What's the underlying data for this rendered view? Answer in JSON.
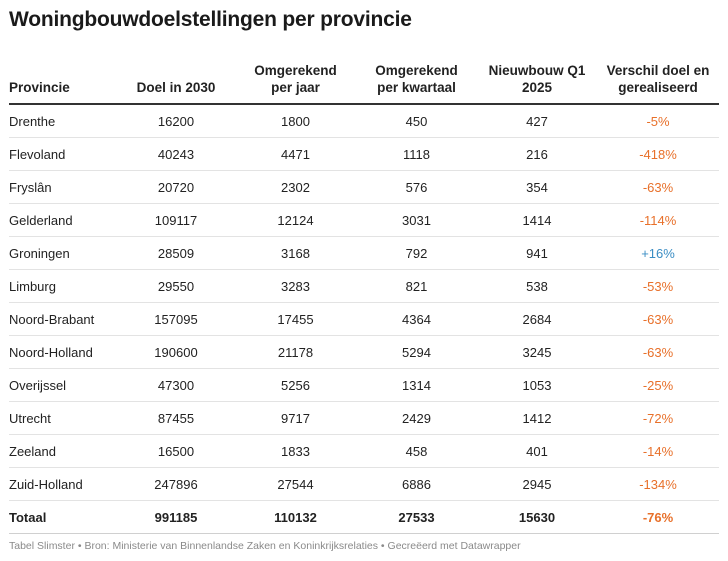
{
  "title": "Woningbouwdoelstellingen per provincie",
  "columns": [
    {
      "line1": "Provincie",
      "line2": ""
    },
    {
      "line1": "Doel in 2030",
      "line2": ""
    },
    {
      "line1": "Omgerekend",
      "line2": "per jaar"
    },
    {
      "line1": "Omgerekend",
      "line2": "per kwartaal"
    },
    {
      "line1": "Nieuwbouw Q1",
      "line2": "2025"
    },
    {
      "line1": "Verschil doel en",
      "line2": "gerealiseerd"
    }
  ],
  "rows": [
    [
      "Drenthe",
      "16200",
      "1800",
      "450",
      "427",
      "-5%"
    ],
    [
      "Flevoland",
      "40243",
      "4471",
      "1118",
      "216",
      "-418%"
    ],
    [
      "Fryslân",
      "20720",
      "2302",
      "576",
      "354",
      "-63%"
    ],
    [
      "Gelderland",
      "109117",
      "12124",
      "3031",
      "1414",
      "-114%"
    ],
    [
      "Groningen",
      "28509",
      "3168",
      "792",
      "941",
      "+16%"
    ],
    [
      "Limburg",
      "29550",
      "3283",
      "821",
      "538",
      "-53%"
    ],
    [
      "Noord-Brabant",
      "157095",
      "17455",
      "4364",
      "2684",
      "-63%"
    ],
    [
      "Noord-Holland",
      "190600",
      "21178",
      "5294",
      "3245",
      "-63%"
    ],
    [
      "Overijssel",
      "47300",
      "5256",
      "1314",
      "1053",
      "-25%"
    ],
    [
      "Utrecht",
      "87455",
      "9717",
      "2429",
      "1412",
      "-72%"
    ],
    [
      "Zeeland",
      "16500",
      "1833",
      "458",
      "401",
      "-14%"
    ],
    [
      "Zuid-Holland",
      "247896",
      "27544",
      "6886",
      "2945",
      "-134%"
    ]
  ],
  "total": [
    "Totaal",
    "991185",
    "110132",
    "27533",
    "15630",
    "-76%"
  ],
  "colors": {
    "negative": "#e8702a",
    "positive": "#3a8dc4"
  },
  "footer": "Tabel Slimster • Bron: Ministerie van Binnenlandse Zaken en Koninkrijksrelaties • Gecreëerd met Datawrapper"
}
